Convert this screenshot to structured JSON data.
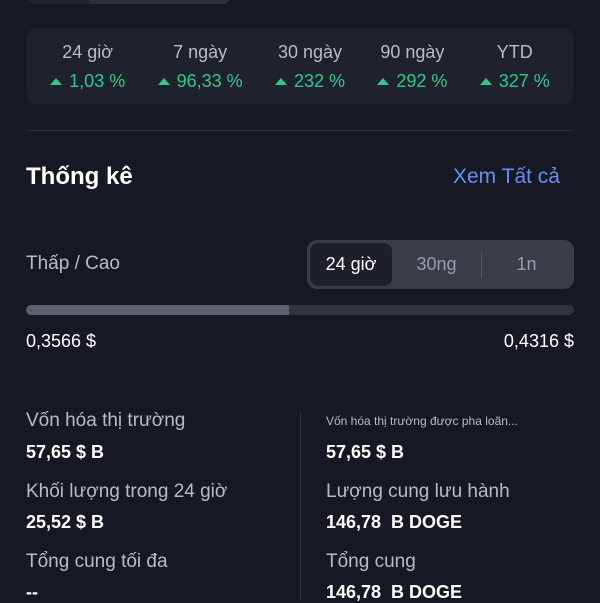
{
  "performance": [
    {
      "label": "24 giờ",
      "value": "1,03 %"
    },
    {
      "label": "7 ngày",
      "value": "96,33 %"
    },
    {
      "label": "30 ngày",
      "value": "232 %"
    },
    {
      "label": "90 ngày",
      "value": "292 %"
    },
    {
      "label": "YTD",
      "value": "327 %"
    }
  ],
  "stats": {
    "title": "Thống kê",
    "see_all": "Xem Tất cả",
    "low_high_label": "Thấp / Cao",
    "ranges": [
      "24 giờ",
      "30ng",
      "1n"
    ],
    "selected_range": "24 giờ",
    "low": "0,3566 $",
    "high": "0,4316 $",
    "position_percent": 48,
    "left": [
      {
        "label": "Vốn hóa thị trường",
        "value": "57,65 $ B"
      },
      {
        "label": "Khối lượng trong 24 giờ",
        "value": "25,52 $ B"
      },
      {
        "label": "Tổng cung tối đa",
        "value": "--"
      }
    ],
    "right": [
      {
        "label": "Vốn hóa thị trường được pha loãn...",
        "value": "57,65 $ B"
      },
      {
        "label": "Lượng cung lưu hành",
        "value": "146,78  B DOGE"
      },
      {
        "label": "Tổng cung",
        "value": "146,78  B DOGE"
      }
    ]
  },
  "colors": {
    "up": "#2fc98c",
    "accent": "#6d8bf5",
    "background": "#161923"
  }
}
